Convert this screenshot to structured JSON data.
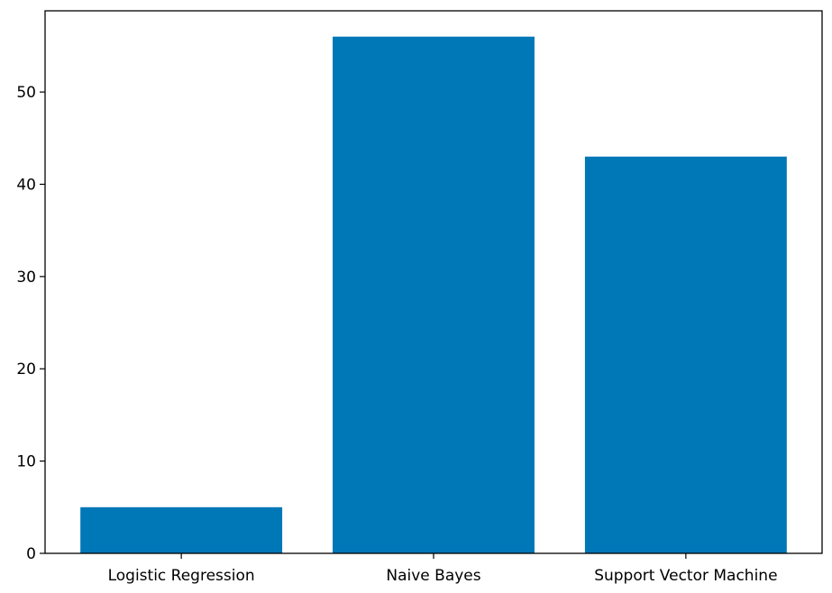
{
  "chart_data": {
    "type": "bar",
    "title": "",
    "xlabel": "",
    "ylabel": "",
    "categories": [
      "Logistic Regression",
      "Naive Bayes",
      "Support Vector Machine"
    ],
    "values": [
      5,
      56,
      43
    ],
    "ylim": [
      0,
      58.8
    ],
    "yticks": [
      0,
      10,
      20,
      30,
      40,
      50
    ],
    "ytick_labels": [
      "0",
      "10",
      "20",
      "30",
      "40",
      "50"
    ],
    "bar_color": "#0077b6",
    "grid": false,
    "legend": "none"
  }
}
